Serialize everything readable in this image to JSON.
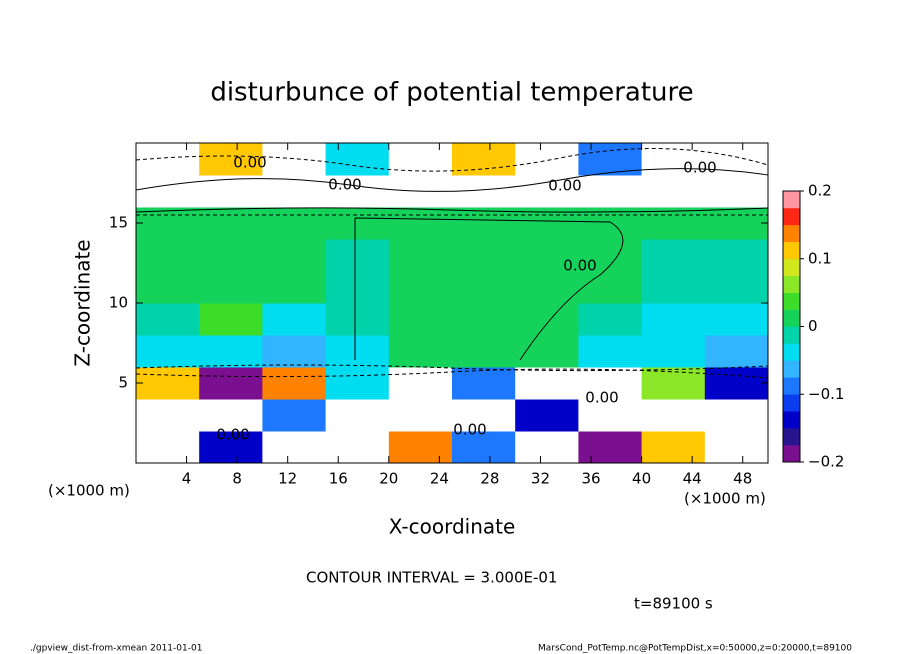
{
  "chart_data": {
    "type": "heatmap",
    "title": "disturbunce of potential temperature",
    "x_label": "X-coordinate",
    "y_label": "Z-coordinate",
    "x_unit": "(×1000 m)",
    "y_unit": "(×1000 m)",
    "xlim": [
      0,
      50
    ],
    "ylim": [
      0,
      20
    ],
    "xticks": [
      4,
      8,
      12,
      16,
      20,
      24,
      28,
      32,
      36,
      40,
      44,
      48
    ],
    "yticks": [
      5,
      10,
      15
    ],
    "xbins": [
      0,
      5,
      10,
      15,
      20,
      25,
      30,
      35,
      40,
      45,
      50
    ],
    "ybins": [
      0,
      2,
      4,
      6,
      8,
      10,
      12,
      14,
      16,
      18,
      20
    ],
    "values": [
      [
        0.3,
        -0.15,
        0.25,
        -0.3,
        0.15,
        -0.1,
        0.3,
        -0.2,
        0.1,
        -0.25
      ],
      [
        -0.25,
        0.3,
        -0.1,
        0.2,
        -0.3,
        0.25,
        -0.15,
        0.3,
        -0.25,
        0.2
      ],
      [
        0.1,
        -0.2,
        0.15,
        -0.05,
        0.3,
        -0.1,
        0.2,
        -0.3,
        0.05,
        -0.15
      ],
      [
        -0.05,
        -0.04,
        -0.06,
        -0.03,
        0.02,
        0.01,
        0,
        -0.05,
        -0.04,
        -0.06
      ],
      [
        -0.02,
        0.03,
        -0.03,
        -0.02,
        0.01,
        0.01,
        0,
        -0.02,
        -0.03,
        -0.04
      ],
      [
        0,
        0.01,
        0,
        -0.01,
        0.01,
        0.01,
        0.01,
        0,
        -0.01,
        -0.01
      ],
      [
        0,
        0.01,
        0,
        -0.01,
        0.01,
        0.01,
        0.01,
        0,
        -0.01,
        -0.01
      ],
      [
        0,
        0,
        0,
        0,
        0.01,
        0.01,
        0.01,
        0,
        0,
        0
      ],
      [
        0.25,
        0.3,
        0.25,
        0.3,
        0.25,
        0.3,
        0.25,
        0.3,
        0.25,
        0.3
      ],
      [
        -0.3,
        0.1,
        0.3,
        -0.05,
        0.3,
        0.12,
        0.3,
        -0.08,
        0.3,
        0.25
      ]
    ],
    "clim": [
      -0.2,
      0.2
    ],
    "cticks": [
      {
        "value": 0.2,
        "label": "0.2"
      },
      {
        "value": 0.1,
        "label": "0.1"
      },
      0,
      {
        "value": -0.1,
        "label": "−0.1"
      },
      {
        "value": -0.2,
        "label": "−0.2"
      }
    ],
    "colors": [
      "#7a0f8f",
      "#28148c",
      "#0000c8",
      "#0a3cf0",
      "#1e78ff",
      "#32b4ff",
      "#00dcf0",
      "#00d2aa",
      "#14d25a",
      "#3cdc28",
      "#8ce628",
      "#d2e61e",
      "#ffc800",
      "#ff8200",
      "#ff2814",
      "#ff96a0"
    ],
    "contour_labels": [
      "0.00",
      "0.00",
      "0.00",
      "0.00",
      "0.00",
      "0.00",
      "0.00",
      "0.00"
    ],
    "contour_interval": "CONTOUR INTERVAL = 3.000E-01",
    "time": "t=89100 s",
    "footer_left": "./gpview_dist-from-xmean  2011-01-01",
    "footer_right": "MarsCond_PotTemp.nc@PotTempDist,x=0:50000,z=0:20000,t=89100"
  }
}
